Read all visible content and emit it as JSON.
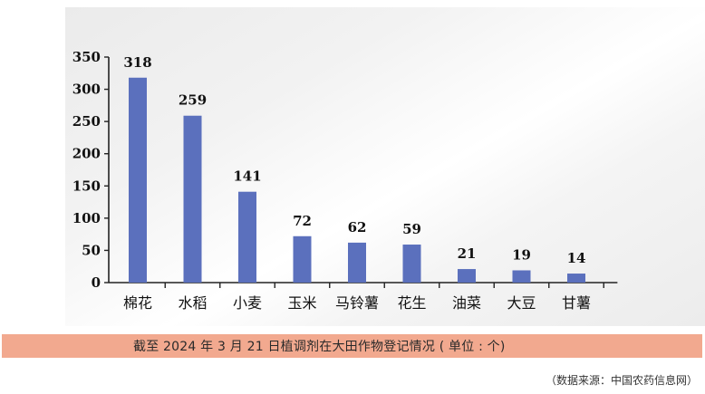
{
  "chart_data": {
    "type": "bar",
    "categories": [
      "棉花",
      "水稻",
      "小麦",
      "玉米",
      "马铃薯",
      "花生",
      "油菜",
      "大豆",
      "甘薯"
    ],
    "values": [
      318,
      259,
      141,
      72,
      62,
      59,
      21,
      19,
      14
    ],
    "data_labels": [
      "318",
      "259",
      "141",
      "72",
      "62",
      "59",
      "21",
      "19",
      "14"
    ],
    "ylim": [
      0,
      350
    ],
    "yticks": [
      0,
      50,
      100,
      150,
      200,
      250,
      300,
      350
    ],
    "ytick_labels": [
      "0",
      "50",
      "100",
      "150",
      "200",
      "250",
      "300",
      "350"
    ],
    "bar_color": "#5b70bd",
    "grid": false
  },
  "caption": "截至 2024 年 3 月 21 日植调剂在大田作物登记情况 ( 单位 : 个)",
  "source": "（数据来源：中国农药信息网）",
  "colors": {
    "caption_bg": "#f2a98f",
    "bar": "#5b70bd"
  }
}
